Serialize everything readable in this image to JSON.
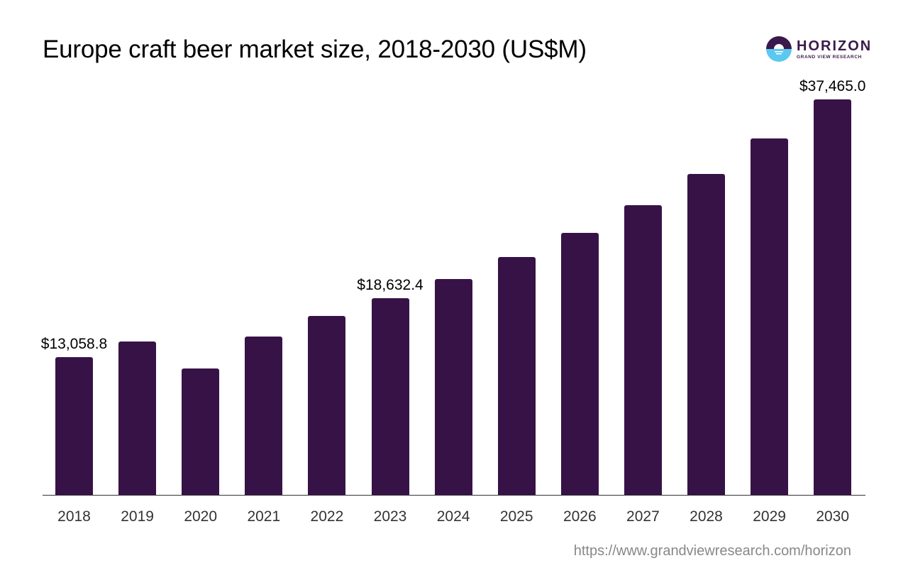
{
  "header": {
    "title": "Europe craft beer market size, 2018-2030 (US$M)"
  },
  "logo": {
    "name": "HORIZON",
    "subtitle": "GRAND VIEW RESEARCH",
    "colors": {
      "top": "#3a1a4a",
      "bottom": "#5bc8ef"
    }
  },
  "footer": {
    "source_url": "https://www.grandviewresearch.com/horizon"
  },
  "colors": {
    "bar": "#371247",
    "axis": "#333333"
  },
  "chart_data": {
    "type": "bar",
    "title": "Europe craft beer market size, 2018-2030 (US$M)",
    "xlabel": "",
    "ylabel": "",
    "categories": [
      "2018",
      "2019",
      "2020",
      "2021",
      "2022",
      "2023",
      "2024",
      "2025",
      "2026",
      "2027",
      "2028",
      "2029",
      "2030"
    ],
    "values": [
      13058.8,
      14530,
      11970,
      15000,
      16950,
      18632.4,
      20450,
      22530,
      24820,
      27440,
      30400,
      33770,
      37465.0
    ],
    "data_labels": [
      {
        "category": "2018",
        "text": "$13,058.8"
      },
      {
        "category": "2023",
        "text": "$18,632.4"
      },
      {
        "category": "2030",
        "text": "$37,465.0"
      }
    ],
    "ylim": [
      0,
      40000
    ],
    "grid": false,
    "legend": null
  }
}
